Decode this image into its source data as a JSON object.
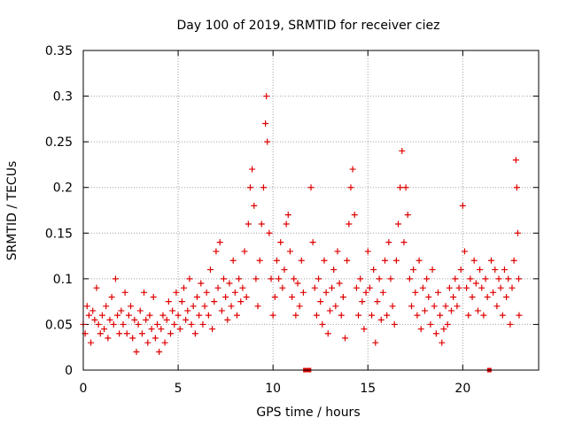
{
  "chart_data": {
    "type": "scatter",
    "title": "Day 100 of 2019, SRMTID for receiver ciez",
    "xlabel": "GPS time / hours",
    "ylabel": "SRMTID / TECUs",
    "xlim": [
      0,
      24
    ],
    "ylim": [
      0,
      0.35
    ],
    "xticks": [
      0,
      5,
      10,
      15,
      20
    ],
    "xtick_labels": [
      "0",
      "5",
      "10",
      "15",
      "20"
    ],
    "yticks": [
      0,
      0.05,
      0.1,
      0.15,
      0.2,
      0.25,
      0.3,
      0.35
    ],
    "ytick_labels": [
      "0",
      "0.05",
      "0.1",
      "0.15",
      "0.2",
      "0.25",
      "0.3",
      "0.35"
    ],
    "grid": true,
    "marker": "+",
    "color": "#e00000",
    "series": [
      {
        "name": "SRMTID",
        "points": [
          [
            0.0,
            0.05
          ],
          [
            0.1,
            0.04
          ],
          [
            0.2,
            0.07
          ],
          [
            0.3,
            0.06
          ],
          [
            0.4,
            0.03
          ],
          [
            0.5,
            0.065
          ],
          [
            0.6,
            0.055
          ],
          [
            0.7,
            0.09
          ],
          [
            0.8,
            0.05
          ],
          [
            0.9,
            0.04
          ],
          [
            1.0,
            0.06
          ],
          [
            1.1,
            0.045
          ],
          [
            1.2,
            0.07
          ],
          [
            1.3,
            0.035
          ],
          [
            1.4,
            0.055
          ],
          [
            1.5,
            0.08
          ],
          [
            1.6,
            0.05
          ],
          [
            1.7,
            0.1
          ],
          [
            1.8,
            0.06
          ],
          [
            1.9,
            0.04
          ],
          [
            2.0,
            0.065
          ],
          [
            2.1,
            0.05
          ],
          [
            2.2,
            0.085
          ],
          [
            2.3,
            0.04
          ],
          [
            2.4,
            0.06
          ],
          [
            2.5,
            0.07
          ],
          [
            2.6,
            0.035
          ],
          [
            2.7,
            0.055
          ],
          [
            2.8,
            0.02
          ],
          [
            2.9,
            0.05
          ],
          [
            3.0,
            0.065
          ],
          [
            3.1,
            0.04
          ],
          [
            3.2,
            0.085
          ],
          [
            3.3,
            0.055
          ],
          [
            3.4,
            0.03
          ],
          [
            3.5,
            0.06
          ],
          [
            3.6,
            0.045
          ],
          [
            3.7,
            0.08
          ],
          [
            3.8,
            0.035
          ],
          [
            3.9,
            0.05
          ],
          [
            4.0,
            0.02
          ],
          [
            4.1,
            0.045
          ],
          [
            4.2,
            0.06
          ],
          [
            4.3,
            0.03
          ],
          [
            4.4,
            0.055
          ],
          [
            4.5,
            0.075
          ],
          [
            4.6,
            0.04
          ],
          [
            4.7,
            0.065
          ],
          [
            4.8,
            0.05
          ],
          [
            4.9,
            0.085
          ],
          [
            5.0,
            0.06
          ],
          [
            5.1,
            0.045
          ],
          [
            5.2,
            0.075
          ],
          [
            5.3,
            0.09
          ],
          [
            5.4,
            0.055
          ],
          [
            5.5,
            0.065
          ],
          [
            5.6,
            0.1
          ],
          [
            5.7,
            0.05
          ],
          [
            5.8,
            0.07
          ],
          [
            5.9,
            0.04
          ],
          [
            6.0,
            0.08
          ],
          [
            6.1,
            0.06
          ],
          [
            6.2,
            0.095
          ],
          [
            6.3,
            0.05
          ],
          [
            6.4,
            0.07
          ],
          [
            6.5,
            0.085
          ],
          [
            6.6,
            0.06
          ],
          [
            6.7,
            0.11
          ],
          [
            6.8,
            0.045
          ],
          [
            6.9,
            0.075
          ],
          [
            7.0,
            0.13
          ],
          [
            7.1,
            0.09
          ],
          [
            7.2,
            0.14
          ],
          [
            7.3,
            0.065
          ],
          [
            7.4,
            0.1
          ],
          [
            7.5,
            0.08
          ],
          [
            7.6,
            0.055
          ],
          [
            7.7,
            0.095
          ],
          [
            7.8,
            0.07
          ],
          [
            7.9,
            0.12
          ],
          [
            8.0,
            0.085
          ],
          [
            8.1,
            0.06
          ],
          [
            8.2,
            0.1
          ],
          [
            8.3,
            0.075
          ],
          [
            8.4,
            0.09
          ],
          [
            8.5,
            0.13
          ],
          [
            8.6,
            0.08
          ],
          [
            8.7,
            0.16
          ],
          [
            8.8,
            0.2
          ],
          [
            8.9,
            0.22
          ],
          [
            9.0,
            0.18
          ],
          [
            9.1,
            0.1
          ],
          [
            9.2,
            0.07
          ],
          [
            9.3,
            0.12
          ],
          [
            9.4,
            0.16
          ],
          [
            9.5,
            0.2
          ],
          [
            9.6,
            0.27
          ],
          [
            9.65,
            0.3
          ],
          [
            9.7,
            0.25
          ],
          [
            9.8,
            0.15
          ],
          [
            9.9,
            0.1
          ],
          [
            10.0,
            0.06
          ],
          [
            10.1,
            0.08
          ],
          [
            10.2,
            0.12
          ],
          [
            10.3,
            0.1
          ],
          [
            10.4,
            0.14
          ],
          [
            10.5,
            0.09
          ],
          [
            10.6,
            0.11
          ],
          [
            10.7,
            0.16
          ],
          [
            10.8,
            0.17
          ],
          [
            10.9,
            0.13
          ],
          [
            11.0,
            0.08
          ],
          [
            11.1,
            0.1
          ],
          [
            11.2,
            0.06
          ],
          [
            11.3,
            0.095
          ],
          [
            11.4,
            0.07
          ],
          [
            11.5,
            0.12
          ],
          [
            11.6,
            0.085
          ],
          [
            12.0,
            0.2
          ],
          [
            12.1,
            0.14
          ],
          [
            12.2,
            0.09
          ],
          [
            12.3,
            0.06
          ],
          [
            12.4,
            0.1
          ],
          [
            12.5,
            0.075
          ],
          [
            12.6,
            0.05
          ],
          [
            12.7,
            0.12
          ],
          [
            12.8,
            0.085
          ],
          [
            12.9,
            0.04
          ],
          [
            13.0,
            0.065
          ],
          [
            13.1,
            0.09
          ],
          [
            13.2,
            0.11
          ],
          [
            13.3,
            0.07
          ],
          [
            13.4,
            0.13
          ],
          [
            13.5,
            0.095
          ],
          [
            13.6,
            0.06
          ],
          [
            13.7,
            0.08
          ],
          [
            13.8,
            0.035
          ],
          [
            13.9,
            0.12
          ],
          [
            14.0,
            0.16
          ],
          [
            14.1,
            0.2
          ],
          [
            14.2,
            0.22
          ],
          [
            14.3,
            0.17
          ],
          [
            14.4,
            0.09
          ],
          [
            14.5,
            0.06
          ],
          [
            14.6,
            0.1
          ],
          [
            14.7,
            0.075
          ],
          [
            14.8,
            0.045
          ],
          [
            14.9,
            0.085
          ],
          [
            15.0,
            0.13
          ],
          [
            15.1,
            0.09
          ],
          [
            15.2,
            0.06
          ],
          [
            15.3,
            0.11
          ],
          [
            15.4,
            0.03
          ],
          [
            15.5,
            0.075
          ],
          [
            15.6,
            0.1
          ],
          [
            15.7,
            0.055
          ],
          [
            15.8,
            0.085
          ],
          [
            15.9,
            0.12
          ],
          [
            16.0,
            0.06
          ],
          [
            16.1,
            0.14
          ],
          [
            16.2,
            0.1
          ],
          [
            16.3,
            0.07
          ],
          [
            16.4,
            0.05
          ],
          [
            16.5,
            0.12
          ],
          [
            16.6,
            0.16
          ],
          [
            16.7,
            0.2
          ],
          [
            16.8,
            0.24
          ],
          [
            16.9,
            0.14
          ],
          [
            17.0,
            0.2
          ],
          [
            17.1,
            0.17
          ],
          [
            17.2,
            0.1
          ],
          [
            17.3,
            0.07
          ],
          [
            17.4,
            0.11
          ],
          [
            17.5,
            0.085
          ],
          [
            17.6,
            0.06
          ],
          [
            17.7,
            0.12
          ],
          [
            17.8,
            0.045
          ],
          [
            17.9,
            0.09
          ],
          [
            18.0,
            0.065
          ],
          [
            18.1,
            0.1
          ],
          [
            18.2,
            0.08
          ],
          [
            18.3,
            0.05
          ],
          [
            18.4,
            0.11
          ],
          [
            18.5,
            0.07
          ],
          [
            18.6,
            0.04
          ],
          [
            18.7,
            0.085
          ],
          [
            18.8,
            0.06
          ],
          [
            18.9,
            0.03
          ],
          [
            19.0,
            0.045
          ],
          [
            19.1,
            0.07
          ],
          [
            19.2,
            0.05
          ],
          [
            19.3,
            0.09
          ],
          [
            19.4,
            0.065
          ],
          [
            19.5,
            0.08
          ],
          [
            19.6,
            0.1
          ],
          [
            19.7,
            0.07
          ],
          [
            19.8,
            0.09
          ],
          [
            19.9,
            0.11
          ],
          [
            20.0,
            0.18
          ],
          [
            20.1,
            0.13
          ],
          [
            20.2,
            0.09
          ],
          [
            20.3,
            0.06
          ],
          [
            20.4,
            0.1
          ],
          [
            20.5,
            0.08
          ],
          [
            20.6,
            0.12
          ],
          [
            20.7,
            0.095
          ],
          [
            20.8,
            0.065
          ],
          [
            20.9,
            0.11
          ],
          [
            21.0,
            0.09
          ],
          [
            21.1,
            0.06
          ],
          [
            21.2,
            0.1
          ],
          [
            21.3,
            0.08
          ],
          [
            21.5,
            0.12
          ],
          [
            21.6,
            0.085
          ],
          [
            21.7,
            0.11
          ],
          [
            21.8,
            0.07
          ],
          [
            21.9,
            0.1
          ],
          [
            22.0,
            0.09
          ],
          [
            22.1,
            0.06
          ],
          [
            22.2,
            0.11
          ],
          [
            22.3,
            0.08
          ],
          [
            22.4,
            0.1
          ],
          [
            22.5,
            0.05
          ],
          [
            22.6,
            0.09
          ],
          [
            22.7,
            0.12
          ],
          [
            22.8,
            0.23
          ],
          [
            22.85,
            0.2
          ],
          [
            22.9,
            0.15
          ],
          [
            22.95,
            0.1
          ],
          [
            22.97,
            0.06
          ]
        ]
      }
    ],
    "gap_markers": [
      11.7,
      11.9,
      21.4
    ]
  }
}
